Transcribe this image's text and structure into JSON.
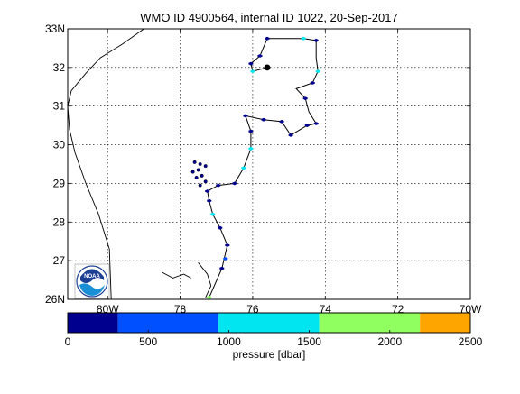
{
  "chart_data": {
    "type": "map-track",
    "title": "WMO ID 4900564, internal ID 1022, 20-Sep-2017",
    "x_axis": {
      "ticks": [
        {
          "value": -80,
          "label": "80W"
        },
        {
          "value": -78,
          "label": "78"
        },
        {
          "value": -76,
          "label": "76"
        },
        {
          "value": -74,
          "label": "74"
        },
        {
          "value": -72,
          "label": "72"
        },
        {
          "value": -70,
          "label": "70W"
        }
      ],
      "range": [
        -81.1,
        -70
      ]
    },
    "y_axis": {
      "ticks": [
        {
          "value": 26,
          "label": "26N"
        },
        {
          "value": 27,
          "label": "27"
        },
        {
          "value": 28,
          "label": "28"
        },
        {
          "value": 29,
          "label": "29"
        },
        {
          "value": 30,
          "label": "30"
        },
        {
          "value": 31,
          "label": "31"
        },
        {
          "value": 32,
          "label": "32"
        },
        {
          "value": 33,
          "label": "33N"
        }
      ],
      "range": [
        26,
        33
      ]
    },
    "grid": true,
    "logo": "NOAA",
    "track": [
      {
        "lon": -77.2,
        "lat": 26.05
      },
      {
        "lon": -76.85,
        "lat": 26.8
      },
      {
        "lon": -76.7,
        "lat": 27.4
      },
      {
        "lon": -76.9,
        "lat": 27.85
      },
      {
        "lon": -77.1,
        "lat": 28.2
      },
      {
        "lon": -77.2,
        "lat": 28.55
      },
      {
        "lon": -77.25,
        "lat": 28.8
      },
      {
        "lon": -76.95,
        "lat": 28.95
      },
      {
        "lon": -76.5,
        "lat": 29.0
      },
      {
        "lon": -76.25,
        "lat": 29.4
      },
      {
        "lon": -76.05,
        "lat": 29.9
      },
      {
        "lon": -76.05,
        "lat": 30.35
      },
      {
        "lon": -76.2,
        "lat": 30.75
      },
      {
        "lon": -75.7,
        "lat": 30.65
      },
      {
        "lon": -75.2,
        "lat": 30.6
      },
      {
        "lon": -74.95,
        "lat": 30.25
      },
      {
        "lon": -74.5,
        "lat": 30.5
      },
      {
        "lon": -74.25,
        "lat": 30.55
      },
      {
        "lon": -74.45,
        "lat": 30.85
      },
      {
        "lon": -74.55,
        "lat": 31.2
      },
      {
        "lon": -74.8,
        "lat": 31.45
      },
      {
        "lon": -74.35,
        "lat": 31.6
      },
      {
        "lon": -74.2,
        "lat": 31.9
      },
      {
        "lon": -74.25,
        "lat": 32.25
      },
      {
        "lon": -74.25,
        "lat": 32.7
      },
      {
        "lon": -74.6,
        "lat": 32.75
      },
      {
        "lon": -75.0,
        "lat": 32.75
      },
      {
        "lon": -75.6,
        "lat": 32.75
      },
      {
        "lon": -75.8,
        "lat": 32.3
      },
      {
        "lon": -76.05,
        "lat": 32.1
      },
      {
        "lon": -76.0,
        "lat": 31.9
      },
      {
        "lon": -75.6,
        "lat": 32.0
      }
    ],
    "track_points": [
      {
        "lon": -77.2,
        "lat": 26.05,
        "p": 1800
      },
      {
        "lon": -76.85,
        "lat": 26.8,
        "p": 100
      },
      {
        "lon": -76.75,
        "lat": 27.05,
        "p": 600
      },
      {
        "lon": -76.7,
        "lat": 27.4,
        "p": 100
      },
      {
        "lon": -76.9,
        "lat": 27.85,
        "p": 100
      },
      {
        "lon": -77.1,
        "lat": 28.2,
        "p": 1200
      },
      {
        "lon": -77.2,
        "lat": 28.55,
        "p": 100
      },
      {
        "lon": -77.25,
        "lat": 28.8,
        "p": 100
      },
      {
        "lon": -76.95,
        "lat": 28.95,
        "p": 100
      },
      {
        "lon": -76.5,
        "lat": 29.0,
        "p": 100
      },
      {
        "lon": -76.25,
        "lat": 29.4,
        "p": 1200
      },
      {
        "lon": -76.05,
        "lat": 29.9,
        "p": 1200
      },
      {
        "lon": -76.05,
        "lat": 30.35,
        "p": 100
      },
      {
        "lon": -76.2,
        "lat": 30.75,
        "p": 100
      },
      {
        "lon": -75.7,
        "lat": 30.65,
        "p": 100
      },
      {
        "lon": -75.2,
        "lat": 30.6,
        "p": 100
      },
      {
        "lon": -74.95,
        "lat": 30.25,
        "p": 100
      },
      {
        "lon": -74.5,
        "lat": 30.5,
        "p": 100
      },
      {
        "lon": -74.25,
        "lat": 30.55,
        "p": 100
      },
      {
        "lon": -74.55,
        "lat": 31.2,
        "p": 100
      },
      {
        "lon": -74.35,
        "lat": 31.6,
        "p": 100
      },
      {
        "lon": -74.2,
        "lat": 31.9,
        "p": 1200
      },
      {
        "lon": -74.25,
        "lat": 32.7,
        "p": 100
      },
      {
        "lon": -74.6,
        "lat": 32.75,
        "p": 1200
      },
      {
        "lon": -75.6,
        "lat": 32.75,
        "p": 100
      },
      {
        "lon": -75.8,
        "lat": 32.3,
        "p": 100
      },
      {
        "lon": -76.05,
        "lat": 32.1,
        "p": 100
      },
      {
        "lon": -76.0,
        "lat": 31.9,
        "p": 1200
      },
      {
        "lon": -75.6,
        "lat": 32.0,
        "p": 100
      }
    ],
    "latest_position": {
      "lon": -75.6,
      "lat": 32.0
    },
    "deployment_cluster": [
      {
        "lon": -77.6,
        "lat": 29.55
      },
      {
        "lon": -77.45,
        "lat": 29.5
      },
      {
        "lon": -77.3,
        "lat": 29.45
      },
      {
        "lon": -77.5,
        "lat": 29.35
      },
      {
        "lon": -77.65,
        "lat": 29.3
      },
      {
        "lon": -77.4,
        "lat": 29.2
      },
      {
        "lon": -77.3,
        "lat": 29.05
      },
      {
        "lon": -77.55,
        "lat": 29.15
      },
      {
        "lon": -77.45,
        "lat": 28.95
      }
    ],
    "coastline": [
      [
        {
          "lon": -79.0,
          "lat": 33.0
        },
        {
          "lon": -79.6,
          "lat": 32.6
        },
        {
          "lon": -80.2,
          "lat": 32.25
        },
        {
          "lon": -80.6,
          "lat": 31.85
        },
        {
          "lon": -81.0,
          "lat": 31.4
        },
        {
          "lon": -81.1,
          "lat": 31.0
        },
        {
          "lon": -81.05,
          "lat": 30.4
        },
        {
          "lon": -80.9,
          "lat": 29.8
        },
        {
          "lon": -80.6,
          "lat": 29.0
        },
        {
          "lon": -80.25,
          "lat": 28.2
        },
        {
          "lon": -79.95,
          "lat": 27.3
        },
        {
          "lon": -79.9,
          "lat": 26.0
        }
      ],
      [
        {
          "lon": -78.5,
          "lat": 26.7
        },
        {
          "lon": -78.2,
          "lat": 26.55
        },
        {
          "lon": -77.9,
          "lat": 26.65
        },
        {
          "lon": -77.7,
          "lat": 26.55
        }
      ],
      [
        {
          "lon": -77.5,
          "lat": 26.95
        },
        {
          "lon": -77.25,
          "lat": 26.65
        },
        {
          "lon": -77.15,
          "lat": 26.35
        },
        {
          "lon": -77.3,
          "lat": 26.05
        }
      ]
    ],
    "colorbar": {
      "label": "pressure [dbar]",
      "ticks": [
        0,
        500,
        1000,
        1500,
        2000,
        2500
      ],
      "range": [
        0,
        2500
      ],
      "bins": [
        {
          "from": 0,
          "to": 312,
          "color": "#00008f"
        },
        {
          "from": 312,
          "to": 937,
          "color": "#0050ff"
        },
        {
          "from": 937,
          "to": 1562,
          "color": "#00e5ef"
        },
        {
          "from": 1562,
          "to": 2187,
          "color": "#90ff60"
        },
        {
          "from": 2187,
          "to": 2500,
          "color": "#ffa500"
        }
      ]
    }
  }
}
